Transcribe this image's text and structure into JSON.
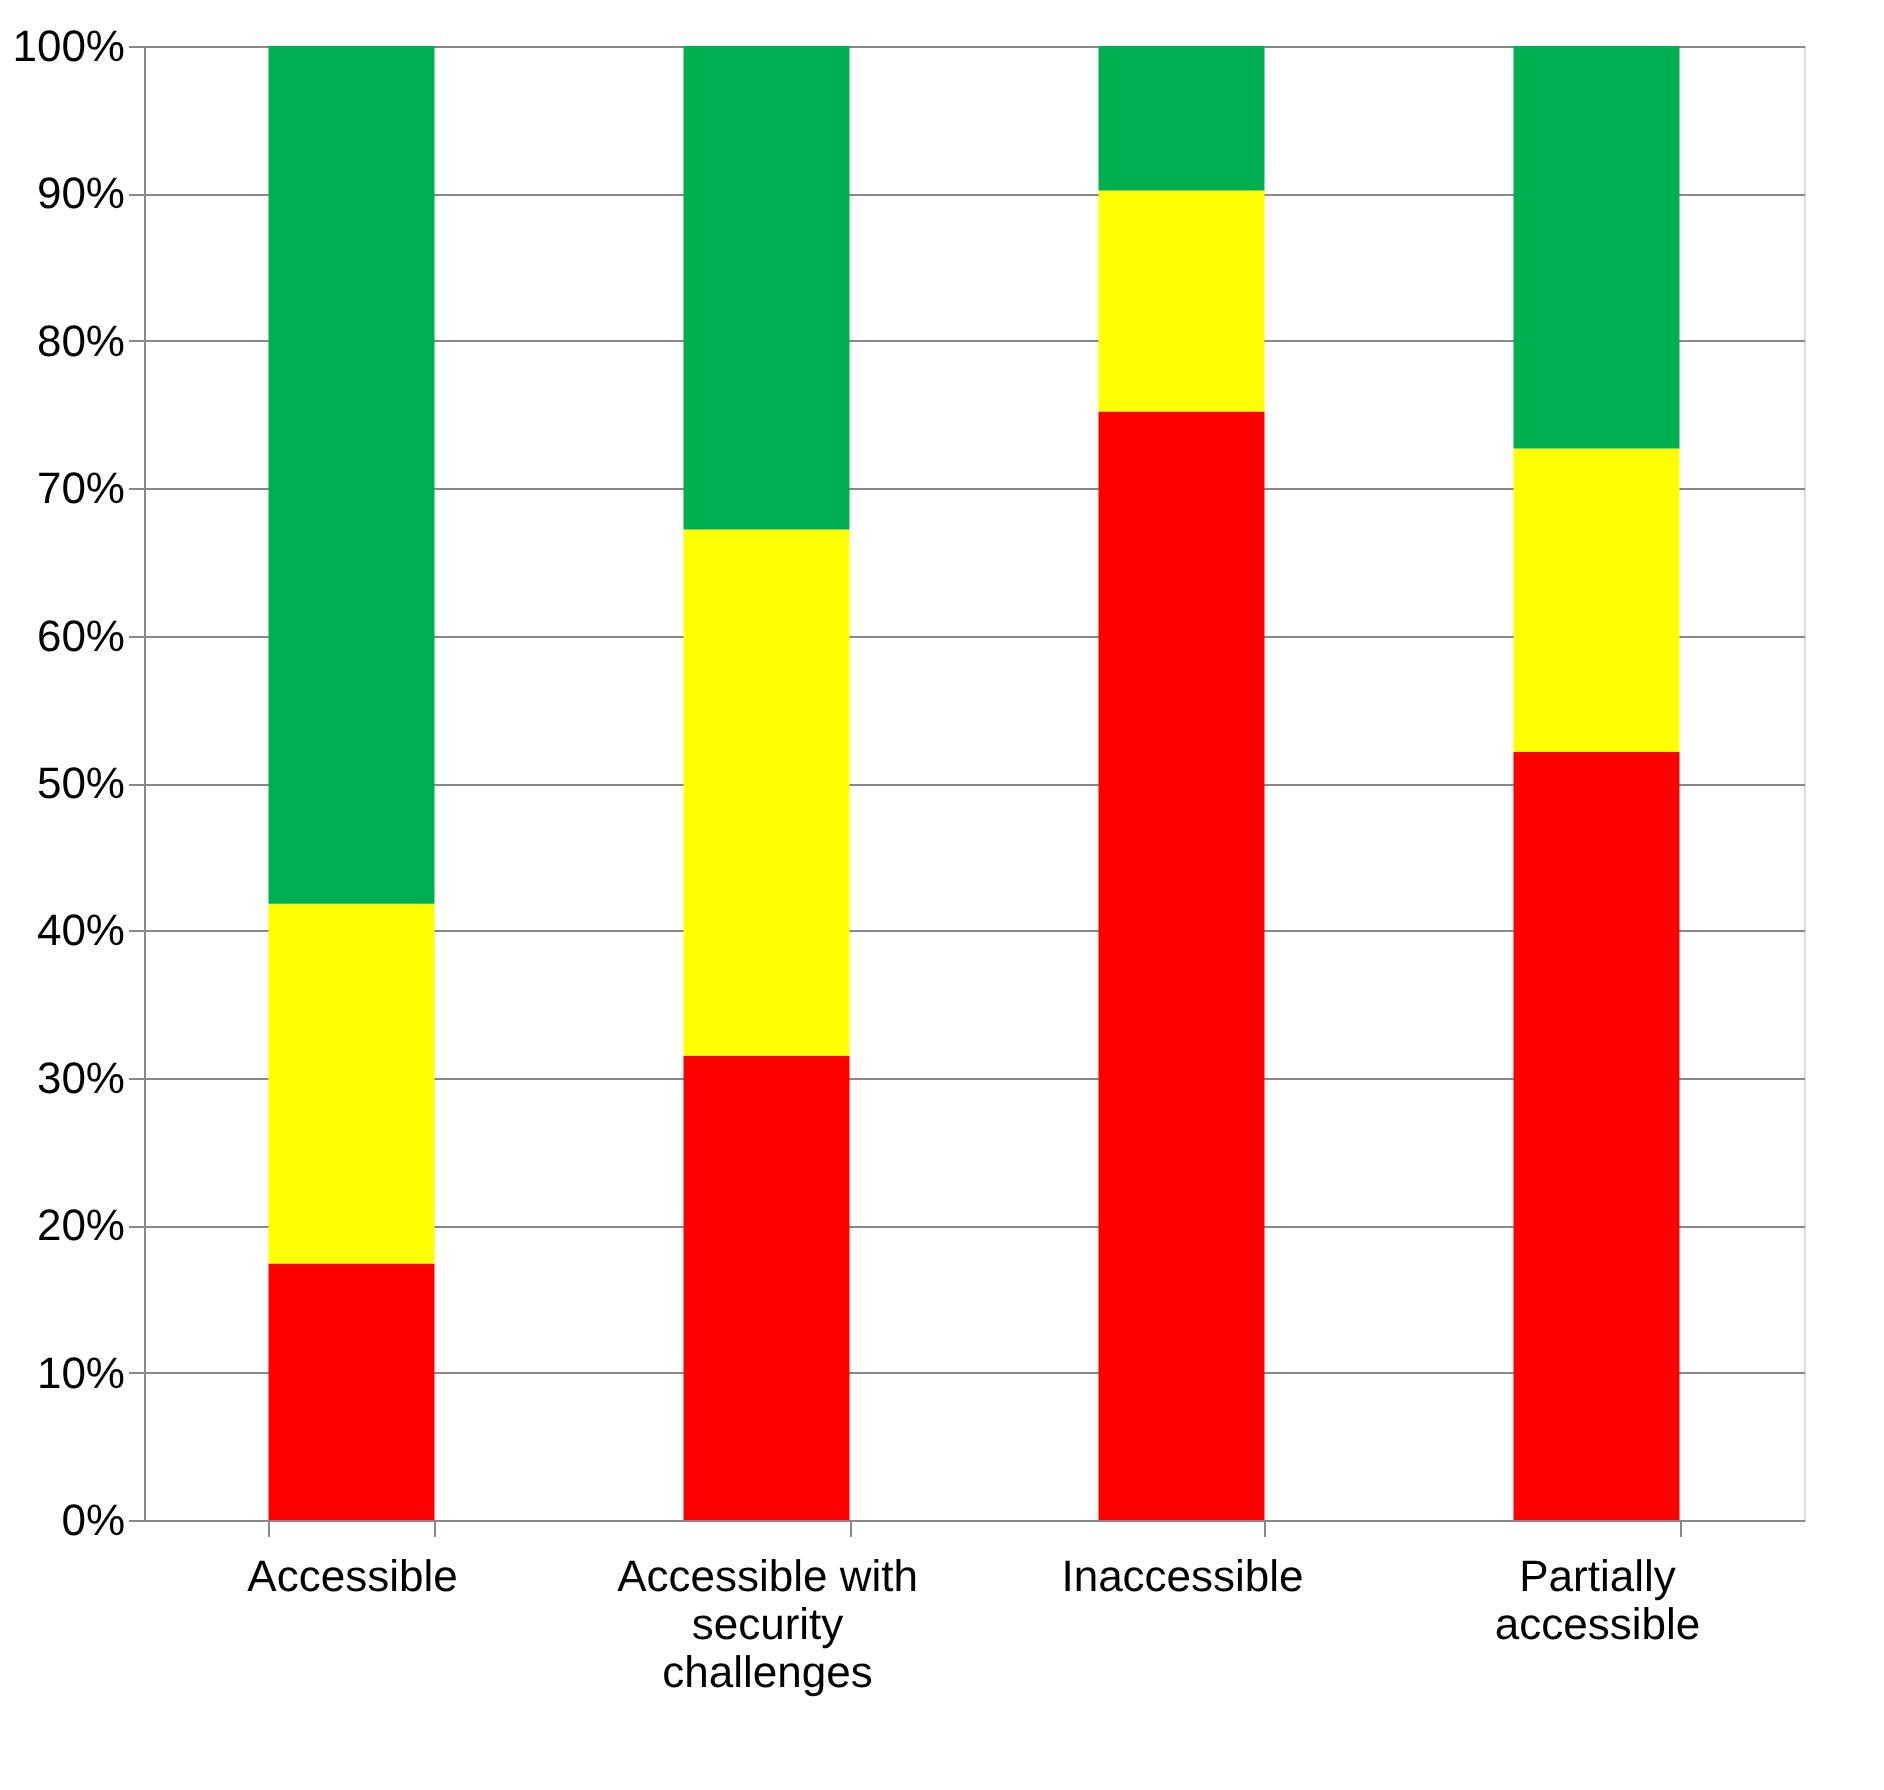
{
  "chart_data": {
    "type": "bar",
    "stacked": true,
    "categories": [
      "Accessible",
      "Accessible with security challenges",
      "Inaccessible",
      "Partially accessible"
    ],
    "series": [
      {
        "color": "#ff0000",
        "values": [
          17.4,
          31.5,
          75.2,
          52.1
        ]
      },
      {
        "color": "#ffff00",
        "values": [
          24.4,
          35.7,
          15.0,
          20.6
        ]
      },
      {
        "color": "#00b050",
        "values": [
          58.2,
          32.8,
          9.8,
          27.3
        ]
      }
    ],
    "ylim": [
      0,
      100
    ],
    "yticks": [
      {
        "value": 0,
        "label": "0%"
      },
      {
        "value": 10,
        "label": "10%"
      },
      {
        "value": 20,
        "label": "20%"
      },
      {
        "value": 30,
        "label": "30%"
      },
      {
        "value": 40,
        "label": "40%"
      },
      {
        "value": 50,
        "label": "50%"
      },
      {
        "value": 60,
        "label": "60%"
      },
      {
        "value": 70,
        "label": "70%"
      },
      {
        "value": 80,
        "label": "80%"
      },
      {
        "value": 90,
        "label": "90%"
      },
      {
        "value": 100,
        "label": "100%"
      }
    ],
    "grid": "y",
    "legend": false
  }
}
